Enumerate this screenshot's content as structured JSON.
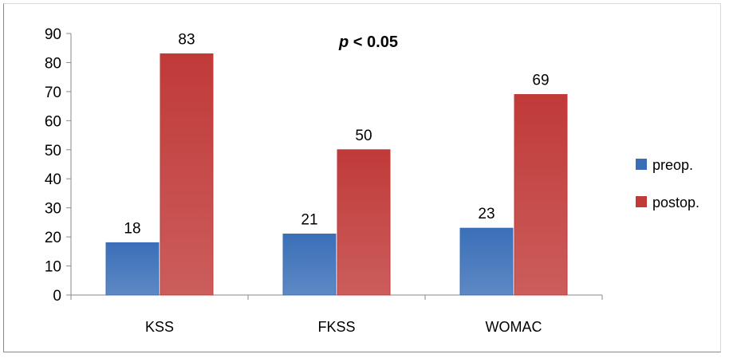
{
  "chart_data": {
    "type": "bar",
    "categories": [
      "KSS",
      "FKSS",
      "WOMAC"
    ],
    "series": [
      {
        "name": "preop.",
        "values": [
          18,
          21,
          23
        ],
        "color": "#3a6fb8"
      },
      {
        "name": "postop.",
        "values": [
          83,
          50,
          69
        ],
        "color": "#c03a38"
      }
    ],
    "data_labels": [
      [
        "18",
        "21",
        "23"
      ],
      [
        "83",
        "50",
        "69"
      ]
    ],
    "ylim": [
      0,
      90
    ],
    "yticks": [
      0,
      10,
      20,
      30,
      40,
      50,
      60,
      70,
      80,
      90
    ],
    "annotation": {
      "italic": "p",
      "text": " < 0.05"
    },
    "legend_position": "right",
    "grid": false
  }
}
